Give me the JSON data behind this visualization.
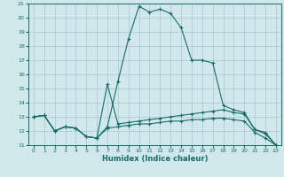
{
  "xlabel": "Humidex (Indice chaleur)",
  "ylabel": "",
  "bg_color": "#d0e8eb",
  "grid_color": "#a8c8cc",
  "line_color": "#1a6b6b",
  "xlim": [
    -0.5,
    23.5
  ],
  "ylim": [
    11,
    21
  ],
  "x_ticks": [
    0,
    1,
    2,
    3,
    4,
    5,
    6,
    7,
    8,
    9,
    10,
    11,
    12,
    13,
    14,
    15,
    16,
    17,
    18,
    19,
    20,
    21,
    22,
    23
  ],
  "y_ticks": [
    11,
    12,
    13,
    14,
    15,
    16,
    17,
    18,
    19,
    20,
    21
  ],
  "series": [
    {
      "x": [
        0,
        1,
        2,
        3,
        4,
        5,
        6,
        7,
        8,
        9,
        10,
        11,
        12,
        13,
        14,
        15,
        16,
        17,
        18,
        19,
        20,
        21,
        22,
        23
      ],
      "y": [
        13.0,
        13.1,
        12.0,
        12.3,
        12.2,
        11.6,
        11.5,
        12.3,
        15.5,
        18.5,
        20.8,
        20.4,
        20.6,
        20.3,
        19.3,
        17.0,
        17.0,
        16.8,
        13.8,
        13.5,
        13.3,
        12.1,
        11.9,
        11.0
      ]
    },
    {
      "x": [
        0,
        1,
        2,
        3,
        4,
        5,
        6,
        7,
        8,
        9,
        10,
        11,
        12,
        13,
        14,
        15,
        16,
        17,
        18,
        19,
        20,
        21,
        22,
        23
      ],
      "y": [
        13.0,
        13.1,
        12.0,
        12.3,
        12.2,
        11.6,
        11.5,
        15.3,
        12.5,
        12.6,
        12.7,
        12.8,
        12.9,
        13.0,
        13.1,
        13.2,
        13.3,
        13.4,
        13.5,
        13.3,
        13.2,
        12.1,
        11.8,
        11.0
      ]
    },
    {
      "x": [
        0,
        1,
        2,
        3,
        4,
        5,
        6,
        7,
        8,
        9,
        10,
        11,
        12,
        13,
        14,
        15,
        16,
        17,
        18,
        19,
        20,
        21,
        22,
        23
      ],
      "y": [
        13.0,
        13.1,
        12.0,
        12.3,
        12.2,
        11.6,
        11.5,
        12.2,
        12.3,
        12.4,
        12.5,
        12.5,
        12.6,
        12.7,
        12.7,
        12.8,
        12.8,
        12.9,
        12.9,
        12.8,
        12.7,
        11.9,
        11.5,
        11.0
      ]
    }
  ]
}
